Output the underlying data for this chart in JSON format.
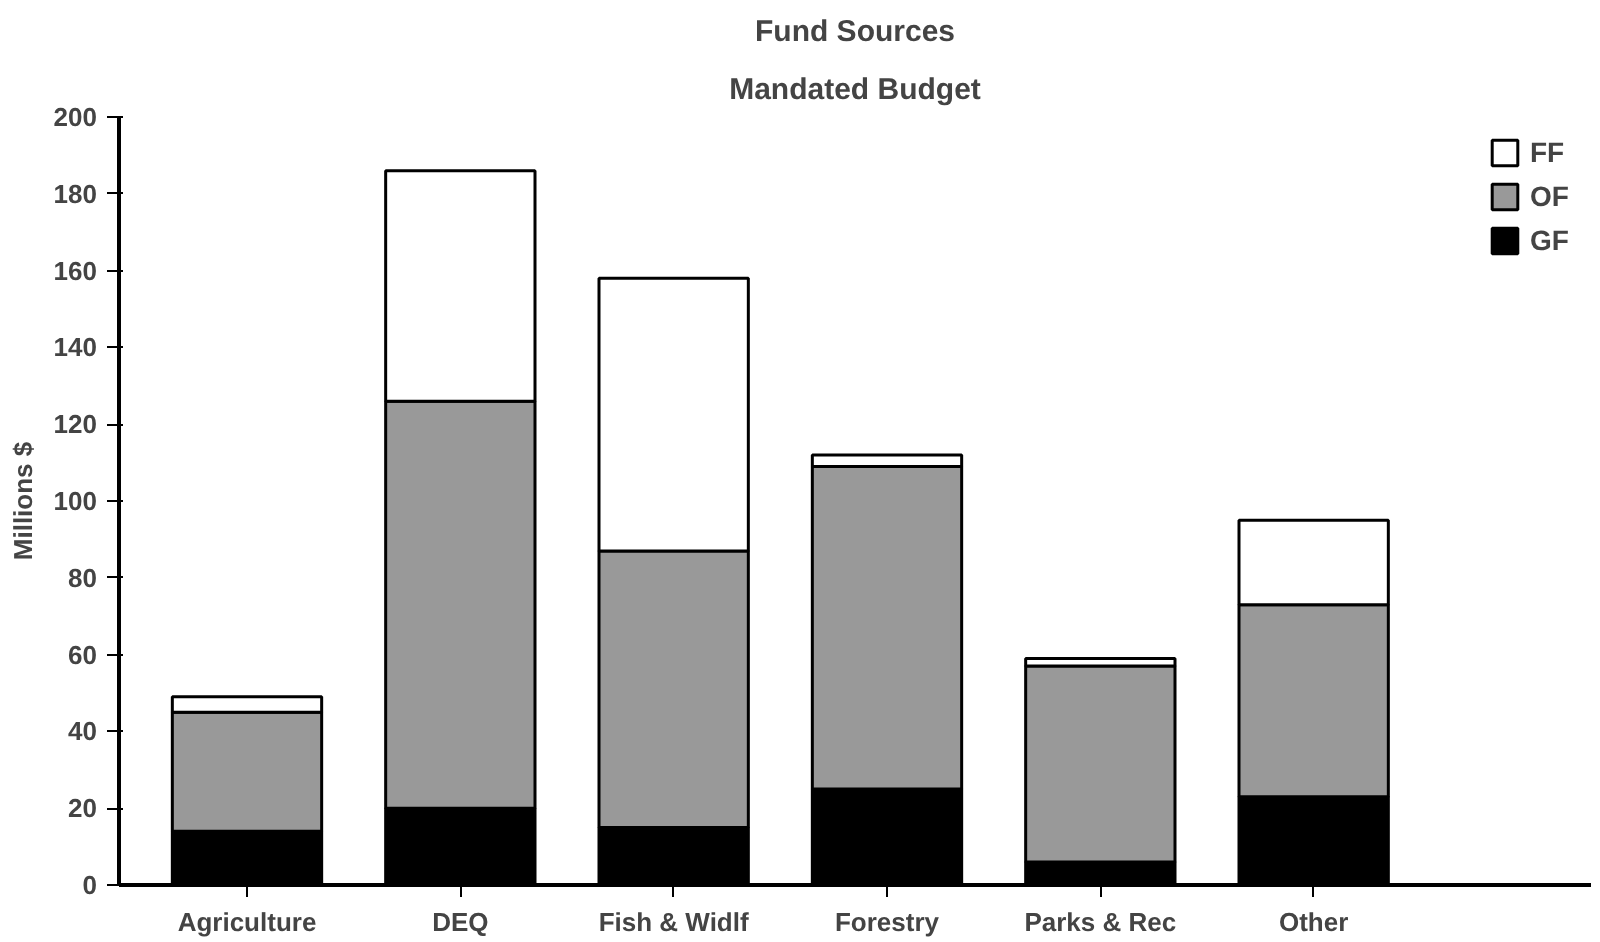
{
  "chart_data": {
    "type": "bar",
    "title": "Fund Sources",
    "subtitle": "Mandated Budget",
    "ylabel": "Millions $",
    "categories": [
      "Agriculture",
      "DEQ",
      "Fish & Widlf",
      "Forestry",
      "Parks & Rec",
      "Other"
    ],
    "stacked": true,
    "series": [
      {
        "name": "GF",
        "color": "#000000",
        "values": [
          14,
          20,
          15,
          25,
          6,
          23
        ]
      },
      {
        "name": "OF",
        "color": "#999999",
        "values": [
          31,
          106,
          72,
          84,
          51,
          50
        ]
      },
      {
        "name": "FF",
        "color": "#ffffff",
        "values": [
          4,
          60,
          71,
          3,
          2,
          22
        ]
      }
    ],
    "ylim": [
      0,
      200
    ],
    "yticks": [
      0,
      20,
      40,
      60,
      80,
      100,
      120,
      140,
      160,
      180,
      200
    ],
    "grid": false,
    "legend": "top right"
  }
}
